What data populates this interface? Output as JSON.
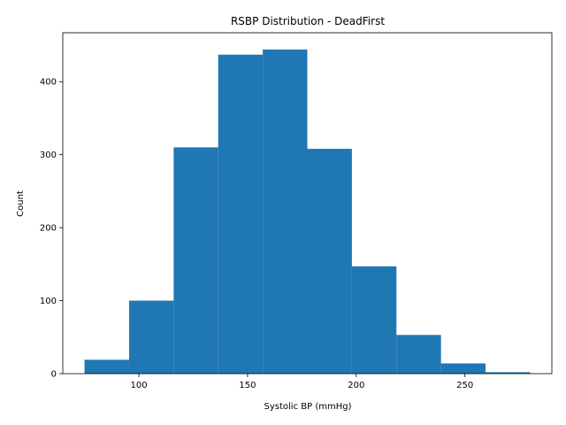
{
  "chart_data": {
    "type": "bar",
    "title": "RSBP Distribution - DeadFirst",
    "xlabel": "Systolic BP (mmHg)",
    "ylabel": "Count",
    "bin_edges": [
      75,
      95.5,
      116,
      136.5,
      157,
      177.5,
      198,
      218.5,
      239,
      259.5,
      280
    ],
    "values": [
      19,
      100,
      310,
      437,
      444,
      308,
      147,
      53,
      14,
      2
    ],
    "xlim": [
      65,
      290
    ],
    "ylim": [
      0,
      467
    ],
    "xticks": [
      100,
      150,
      200,
      250
    ],
    "yticks": [
      0,
      100,
      200,
      300,
      400
    ],
    "bar_color": "#1f77b4",
    "grid": false
  }
}
